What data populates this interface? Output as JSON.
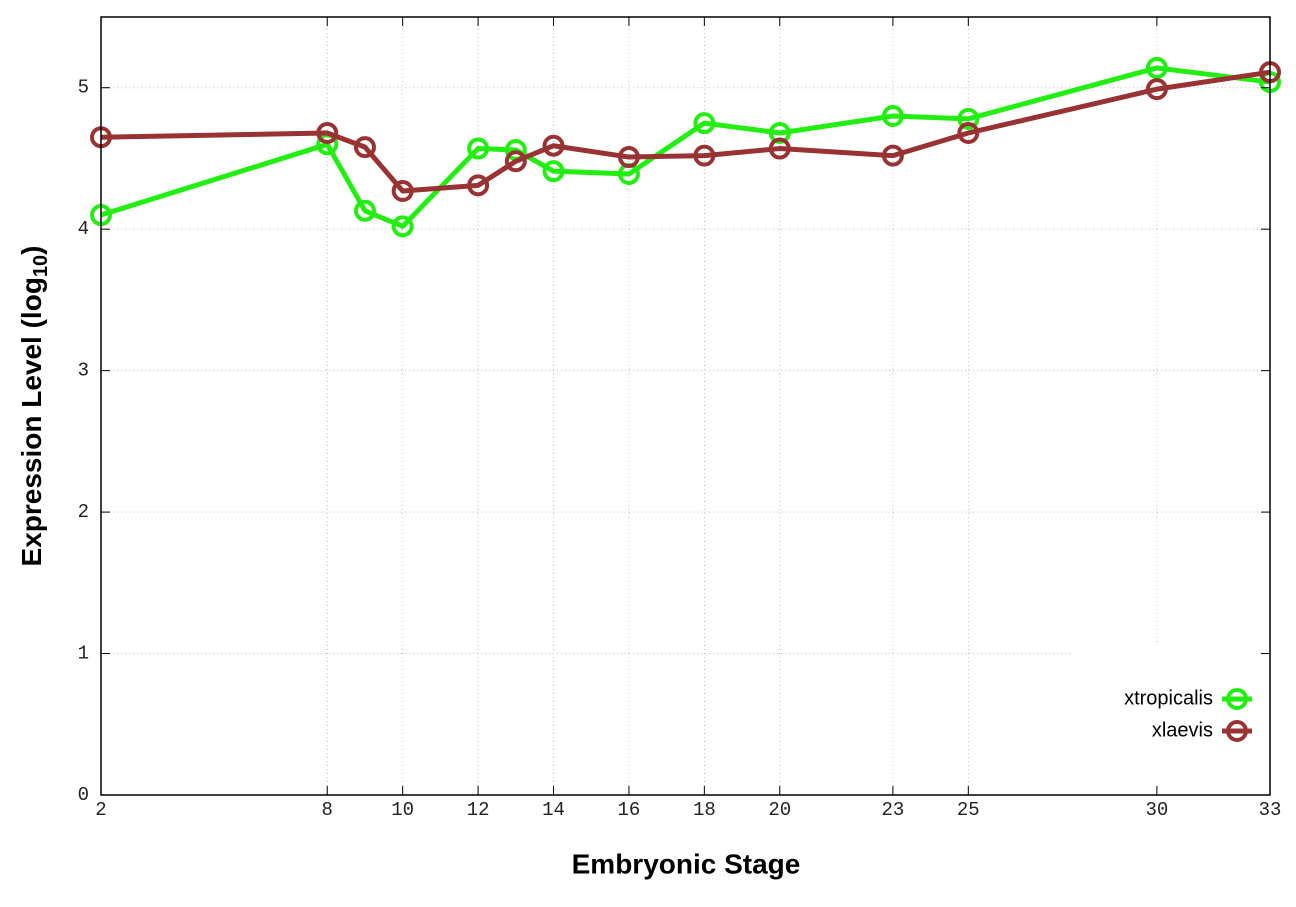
{
  "chart_data": {
    "type": "line",
    "x_label": "Embryonic Stage",
    "y_label": [
      "Expression Level (log",
      "10",
      ")"
    ],
    "x": [
      2,
      8,
      9,
      10,
      12,
      13,
      14,
      16,
      18,
      20,
      23,
      25,
      30,
      33
    ],
    "series": [
      {
        "name": "xtropicalis",
        "color": "#22ee11",
        "values": [
          4.1,
          4.6,
          4.13,
          4.02,
          4.57,
          4.56,
          4.41,
          4.39,
          4.75,
          4.68,
          4.8,
          4.78,
          5.14,
          5.04
        ]
      },
      {
        "name": "xlaevis",
        "color": "#993333",
        "values": [
          4.65,
          4.68,
          4.58,
          4.27,
          4.31,
          4.48,
          4.59,
          4.51,
          4.52,
          4.57,
          4.52,
          4.68,
          4.99,
          5.11
        ]
      }
    ],
    "xlim": [
      2,
      33
    ],
    "xticks": [
      2,
      8,
      10,
      12,
      14,
      16,
      18,
      20,
      23,
      25,
      30,
      33
    ],
    "ylim": [
      0,
      5.5
    ],
    "yticks": [
      0,
      1,
      2,
      3,
      4,
      5
    ],
    "grid": true,
    "legend": "lower right"
  }
}
